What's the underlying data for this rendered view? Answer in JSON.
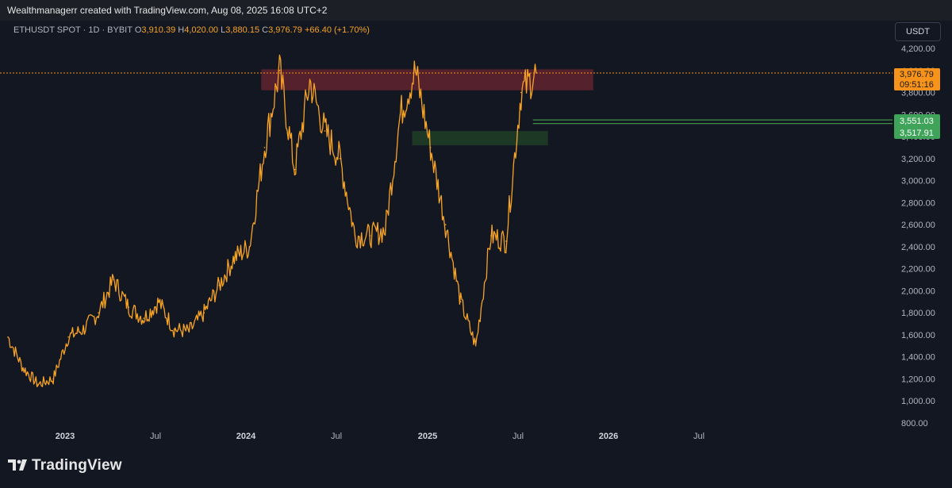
{
  "header": {
    "caption": "Wealthmanagerr created with TradingView.com, Aug 08, 2025 16:08 UTC+2"
  },
  "legend": {
    "symbol": "ETHUSDT SPOT · 1D · BYBIT",
    "open_label": "O",
    "open": "3,910.39",
    "high_label": "H",
    "high": "4,020.00",
    "low_label": "L",
    "low": "3,880.15",
    "close_label": "C",
    "close": "3,976.79",
    "change": "+66.40 (+1.70%)"
  },
  "currency_button": "USDT",
  "price_tags": {
    "last_price": "3,976.79",
    "countdown": "09:51:16",
    "level_upper": "3,551.03",
    "level_lower": "3,517.91"
  },
  "brand": {
    "name": "TradingView"
  },
  "colors": {
    "background": "#131722",
    "candle": "#f7a325",
    "resistance_zone": "#6b2530",
    "support_zone": "#234428",
    "level_line": "#4caf50",
    "last_price_tag": "#f7931a"
  },
  "chart_data": {
    "type": "line",
    "series": [
      {
        "values": [
          {
            "x": "2022-09",
            "y": 1580
          },
          {
            "x": "2022-10",
            "y": 1300
          },
          {
            "x": "2022-11",
            "y": 1150
          },
          {
            "x": "2022-12",
            "y": 1200
          },
          {
            "x": "2023-01",
            "y": 1580
          },
          {
            "x": "2023-02",
            "y": 1650
          },
          {
            "x": "2023-03",
            "y": 1800
          },
          {
            "x": "2023-04",
            "y": 2100
          },
          {
            "x": "2023-05",
            "y": 1850
          },
          {
            "x": "2023-06",
            "y": 1750
          },
          {
            "x": "2023-07",
            "y": 1900
          },
          {
            "x": "2023-08",
            "y": 1650
          },
          {
            "x": "2023-09",
            "y": 1630
          },
          {
            "x": "2023-10",
            "y": 1800
          },
          {
            "x": "2023-11",
            "y": 2050
          },
          {
            "x": "2023-12",
            "y": 2300
          },
          {
            "x": "2024-01",
            "y": 2400
          },
          {
            "x": "2024-02",
            "y": 3300
          },
          {
            "x": "2024-03",
            "y": 4000
          },
          {
            "x": "2024-04",
            "y": 3100
          },
          {
            "x": "2024-05",
            "y": 3900
          },
          {
            "x": "2024-06",
            "y": 3450
          },
          {
            "x": "2024-07",
            "y": 3200
          },
          {
            "x": "2024-08",
            "y": 2500
          },
          {
            "x": "2024-09",
            "y": 2500
          },
          {
            "x": "2024-10",
            "y": 2550
          },
          {
            "x": "2024-11",
            "y": 3600
          },
          {
            "x": "2024-12",
            "y": 4000
          },
          {
            "x": "2025-01",
            "y": 3300
          },
          {
            "x": "2025-02",
            "y": 2600
          },
          {
            "x": "2025-03",
            "y": 1900
          },
          {
            "x": "2025-04",
            "y": 1500
          },
          {
            "x": "2025-05",
            "y": 2500
          },
          {
            "x": "2025-06",
            "y": 2450
          },
          {
            "x": "2025-07",
            "y": 3800
          },
          {
            "x": "2025-08",
            "y": 3976.79
          }
        ]
      }
    ],
    "x_tick_labels": [
      "2023",
      "Jul",
      "2024",
      "Jul",
      "2025",
      "Jul",
      "2026",
      "Jul"
    ],
    "y_tick_labels": [
      "800.00",
      "1,000.00",
      "1,200.00",
      "1,400.00",
      "1,600.00",
      "1,800.00",
      "2,000.00",
      "2,200.00",
      "2,400.00",
      "2,600.00",
      "2,800.00",
      "3,000.00",
      "3,200.00",
      "3,400.00",
      "3,600.00",
      "3,800.00",
      "4,000.00",
      "4,200.00"
    ],
    "ylim": [
      800,
      4200
    ],
    "zones": [
      {
        "kind": "resistance",
        "from": "2024-02",
        "to": "2025-12",
        "y_low": 3820,
        "y_high": 4010
      },
      {
        "kind": "support",
        "from": "2024-12",
        "to": "2025-09",
        "y_low": 3320,
        "y_high": 3450
      }
    ],
    "horizontal_lines": [
      3976.79,
      3551.03,
      3517.91
    ],
    "grid": false
  }
}
